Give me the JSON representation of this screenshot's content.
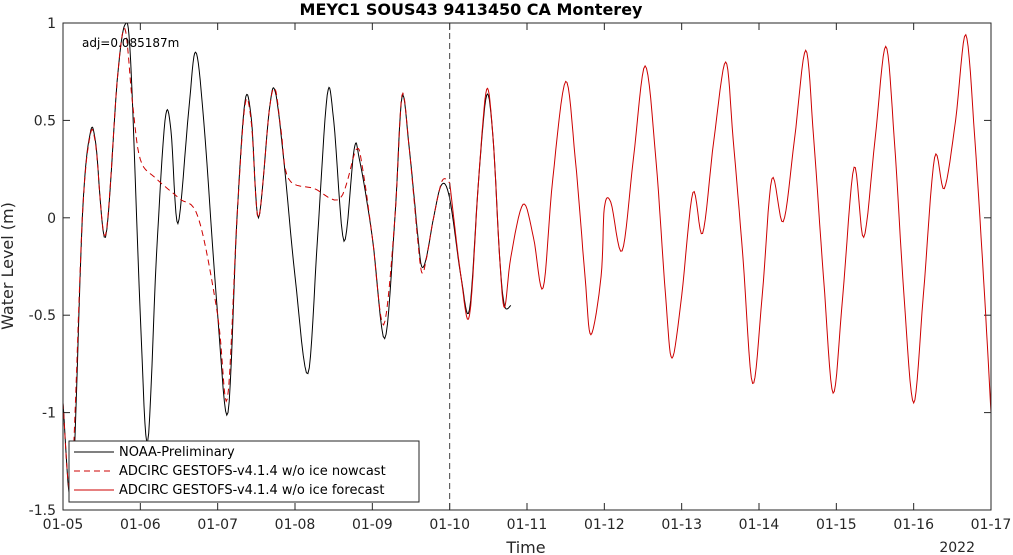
{
  "chart_data": {
    "type": "line",
    "title": "MEYC1 SOUS43 9413450 CA Monterey",
    "xlabel": "Time",
    "ylabel": "Water Level (m)",
    "year_label": "2022",
    "annotation": "adj=0.085187m",
    "x_tick_labels": [
      "01-05",
      "01-06",
      "01-07",
      "01-08",
      "01-09",
      "01-10",
      "01-11",
      "01-12",
      "01-13",
      "01-14",
      "01-15",
      "01-16",
      "01-17"
    ],
    "xlim": [
      "2022-01-05",
      "2022-01-17"
    ],
    "ylim": [
      -1.5,
      1
    ],
    "y_ticks": [
      -1.5,
      -1,
      -0.5,
      0,
      0.5,
      1
    ],
    "y_tick_labels": [
      "-1.5",
      "-1",
      "-0.5",
      "0",
      "0.5",
      "1"
    ],
    "nowcast_forecast_boundary": "2022-01-10",
    "legend_location": "bottom-left",
    "colors": {
      "observed": "#000000",
      "model": "#cc0000",
      "boundary": "#444444"
    },
    "series": [
      {
        "name": "NOAA-Preliminary",
        "style": "solid",
        "color": "#000000",
        "points": [
          [
            "01-05 00:00",
            -0.95
          ],
          [
            "01-05 02:48",
            -1.43
          ],
          [
            "01-05 06:00",
            0.0
          ],
          [
            "01-05 08:24",
            0.43
          ],
          [
            "01-05 10:10",
            0.38
          ],
          [
            "01-05 13:12",
            -0.1
          ],
          [
            "01-05 16:48",
            0.7
          ],
          [
            "01-05 19:12",
            0.99
          ],
          [
            "01-05 21:00",
            0.8
          ],
          [
            "01-06 00:00",
            -0.5
          ],
          [
            "01-06 02:16",
            -1.15
          ],
          [
            "01-06 05:00",
            -0.2
          ],
          [
            "01-06 07:40",
            0.5
          ],
          [
            "01-06 09:30",
            0.45
          ],
          [
            "01-06 11:40",
            -0.03
          ],
          [
            "01-06 15:00",
            0.55
          ],
          [
            "01-06 17:10",
            0.85
          ],
          [
            "01-06 19:40",
            0.5
          ],
          [
            "01-07 00:00",
            -0.5
          ],
          [
            "01-07 03:12",
            -1.0
          ],
          [
            "01-07 06:00",
            0.0
          ],
          [
            "01-07 08:30",
            0.6
          ],
          [
            "01-07 10:30",
            0.5
          ],
          [
            "01-07 12:40",
            0.0
          ],
          [
            "01-07 16:00",
            0.55
          ],
          [
            "01-07 17:50",
            0.65
          ],
          [
            "01-07 20:30",
            0.3
          ],
          [
            "01-08 00:00",
            -0.3
          ],
          [
            "01-08 04:00",
            -0.8
          ],
          [
            "01-08 07:00",
            -0.1
          ],
          [
            "01-08 10:00",
            0.63
          ],
          [
            "01-08 12:00",
            0.5
          ],
          [
            "01-08 15:12",
            -0.12
          ],
          [
            "01-08 18:20",
            0.35
          ],
          [
            "01-08 20:00",
            0.3
          ],
          [
            "01-09 00:00",
            -0.1
          ],
          [
            "01-09 03:50",
            -0.62
          ],
          [
            "01-09 07:00",
            0.0
          ],
          [
            "01-09 09:12",
            0.62
          ],
          [
            "01-09 11:30",
            0.35
          ],
          [
            "01-09 14:10",
            -0.1
          ],
          [
            "01-09 15:20",
            -0.25
          ],
          [
            "01-09 16:50",
            -0.2
          ],
          [
            "01-09 19:00",
            0.0
          ],
          [
            "01-09 21:30",
            0.17
          ],
          [
            "01-10 00:00",
            0.1
          ],
          [
            "01-10 03:30",
            -0.3
          ],
          [
            "01-10 06:10",
            -0.47
          ],
          [
            "01-10 09:00",
            0.2
          ],
          [
            "01-10 11:30",
            0.63
          ],
          [
            "01-10 13:30",
            0.4
          ],
          [
            "01-10 15:30",
            -0.2
          ],
          [
            "01-10 17:00",
            -0.45
          ],
          [
            "01-10 19:00",
            -0.45
          ]
        ]
      },
      {
        "name": "ADCIRC GESTOFS-v4.1.4 w/o ice nowcast",
        "style": "dashed",
        "color": "#cc0000",
        "points": [
          [
            "01-05 00:00",
            -0.95
          ],
          [
            "01-05 02:36",
            -1.38
          ],
          [
            "01-05 06:00",
            0.0
          ],
          [
            "01-05 08:24",
            0.42
          ],
          [
            "01-05 10:10",
            0.37
          ],
          [
            "01-05 13:12",
            -0.09
          ],
          [
            "01-05 16:48",
            0.7
          ],
          [
            "01-05 19:12",
            0.97
          ],
          [
            "01-05 21:30",
            0.6
          ],
          [
            "01-06 00:00",
            0.3
          ],
          [
            "01-06 05:00",
            0.2
          ],
          [
            "01-06 12:00",
            0.1
          ],
          [
            "01-06 18:00",
            0.0
          ],
          [
            "01-07 00:00",
            -0.5
          ],
          [
            "01-07 03:00",
            -0.93
          ],
          [
            "01-07 06:00",
            0.0
          ],
          [
            "01-07 08:30",
            0.58
          ],
          [
            "01-07 10:30",
            0.48
          ],
          [
            "01-07 12:40",
            0.0
          ],
          [
            "01-07 16:00",
            0.55
          ],
          [
            "01-07 17:50",
            0.66
          ],
          [
            "01-07 19:40",
            0.45
          ],
          [
            "01-07 22:00",
            0.2
          ],
          [
            "01-08 06:00",
            0.15
          ],
          [
            "01-08 14:00",
            0.1
          ],
          [
            "01-08 19:00",
            0.35
          ],
          [
            "01-08 21:00",
            0.25
          ],
          [
            "01-09 00:00",
            -0.1
          ],
          [
            "01-09 03:30",
            -0.55
          ],
          [
            "01-09 07:00",
            0.0
          ],
          [
            "01-09 09:12",
            0.63
          ],
          [
            "01-09 11:30",
            0.35
          ],
          [
            "01-09 14:00",
            -0.1
          ],
          [
            "01-09 15:20",
            -0.28
          ],
          [
            "01-09 16:40",
            -0.22
          ],
          [
            "01-09 19:00",
            0.0
          ],
          [
            "01-09 21:40",
            0.19
          ],
          [
            "01-10 00:00",
            0.18
          ]
        ]
      },
      {
        "name": "ADCIRC GESTOFS-v4.1.4 w/o ice forecast",
        "style": "solid",
        "color": "#cc0000",
        "points": [
          [
            "01-10 00:00",
            0.18
          ],
          [
            "01-10 03:30",
            -0.3
          ],
          [
            "01-10 06:10",
            -0.5
          ],
          [
            "01-10 09:00",
            0.2
          ],
          [
            "01-10 11:30",
            0.66
          ],
          [
            "01-10 13:30",
            0.4
          ],
          [
            "01-10 15:30",
            -0.2
          ],
          [
            "01-10 17:00",
            -0.46
          ],
          [
            "01-10 19:00",
            -0.2
          ],
          [
            "01-10 22:48",
            0.07
          ],
          [
            "01-11 02:00",
            -0.1
          ],
          [
            "01-11 05:00",
            -0.36
          ],
          [
            "01-11 08:00",
            0.2
          ],
          [
            "01-11 12:00",
            0.7
          ],
          [
            "01-11 15:00",
            0.3
          ],
          [
            "01-11 18:00",
            -0.3
          ],
          [
            "01-11 19:50",
            -0.6
          ],
          [
            "01-11 23:00",
            -0.3
          ],
          [
            "01-12 00:00",
            0.05
          ],
          [
            "01-12 02:00",
            0.08
          ],
          [
            "01-12 05:30",
            -0.17
          ],
          [
            "01-12 09:00",
            0.3
          ],
          [
            "01-12 12:40",
            0.78
          ],
          [
            "01-12 16:00",
            0.3
          ],
          [
            "01-12 19:00",
            -0.4
          ],
          [
            "01-12 21:00",
            -0.72
          ],
          [
            "01-13 00:00",
            -0.4
          ],
          [
            "01-13 03:30",
            0.13
          ],
          [
            "01-13 06:30",
            -0.08
          ],
          [
            "01-13 10:00",
            0.4
          ],
          [
            "01-13 13:40",
            0.8
          ],
          [
            "01-13 16:00",
            0.4
          ],
          [
            "01-13 19:00",
            -0.2
          ],
          [
            "01-13 22:00",
            -0.85
          ],
          [
            "01-14 01:00",
            -0.4
          ],
          [
            "01-14 04:00",
            0.2
          ],
          [
            "01-14 07:30",
            -0.02
          ],
          [
            "01-14 11:00",
            0.4
          ],
          [
            "01-14 14:30",
            0.86
          ],
          [
            "01-14 17:00",
            0.4
          ],
          [
            "01-14 20:00",
            -0.3
          ],
          [
            "01-14 23:00",
            -0.9
          ],
          [
            "01-15 02:00",
            -0.4
          ],
          [
            "01-15 05:30",
            0.26
          ],
          [
            "01-15 08:30",
            -0.1
          ],
          [
            "01-15 12:00",
            0.4
          ],
          [
            "01-15 15:20",
            0.88
          ],
          [
            "01-15 18:00",
            0.4
          ],
          [
            "01-15 21:00",
            -0.4
          ],
          [
            "01-16 00:00",
            -0.95
          ],
          [
            "01-16 03:00",
            -0.4
          ],
          [
            "01-16 06:30",
            0.31
          ],
          [
            "01-16 09:30",
            0.15
          ],
          [
            "01-16 13:00",
            0.5
          ],
          [
            "01-16 16:10",
            0.94
          ],
          [
            "01-16 19:00",
            0.4
          ],
          [
            "01-16 22:00",
            -0.4
          ],
          [
            "01-17 00:00",
            -1.0
          ]
        ]
      }
    ]
  }
}
